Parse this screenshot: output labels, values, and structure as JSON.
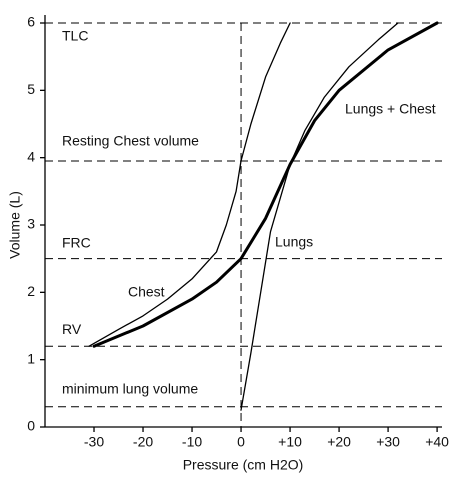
{
  "chart_data": {
    "type": "line",
    "x_label": "Pressure (cm H2O)",
    "y_label": "Volume (L)",
    "xlim": [
      -40,
      41
    ],
    "ylim": [
      0,
      6
    ],
    "xticks": [
      -30,
      -20,
      -10,
      0,
      {
        "value": 10,
        "label": "+10"
      },
      {
        "value": 20,
        "label": "+20"
      },
      {
        "value": 30,
        "label": "+30"
      },
      {
        "value": 40,
        "label": "+40"
      }
    ],
    "yticks": [
      0,
      1,
      2,
      3,
      4,
      5,
      6
    ],
    "reference_lines": [
      {
        "label": "TLC",
        "value": 6
      },
      {
        "label": "Resting Chest volume",
        "value": 3.95
      },
      {
        "label": "FRC",
        "value": 2.5
      },
      {
        "label": "RV",
        "value": 1.2
      },
      {
        "label": "minimum lung volume",
        "value": 0.3
      }
    ],
    "x_reference_lines": [
      0
    ],
    "series": [
      {
        "name": "Chest",
        "color": "#000000",
        "line_width": 1.3,
        "x": [
          -31,
          -25,
          -20,
          -15,
          -10,
          -5,
          -3,
          -1,
          0,
          2,
          5,
          8,
          10
        ],
        "values": [
          1.2,
          1.45,
          1.65,
          1.9,
          2.2,
          2.6,
          3.0,
          3.5,
          3.95,
          4.5,
          5.2,
          5.7,
          6
        ]
      },
      {
        "name": "Lungs",
        "color": "#000000",
        "line_width": 1.3,
        "x": [
          0,
          2,
          4,
          6,
          8,
          10,
          13,
          17,
          22,
          28,
          32
        ],
        "values": [
          0.25,
          1.1,
          2.0,
          2.9,
          3.4,
          3.9,
          4.4,
          4.9,
          5.35,
          5.75,
          6
        ]
      },
      {
        "name": "Lungs + Chest",
        "color": "#000000",
        "line_width": 3,
        "x": [
          -30,
          -20,
          -10,
          -5,
          0,
          5,
          10,
          15,
          20,
          30,
          40
        ],
        "values": [
          1.2,
          1.5,
          1.9,
          2.15,
          2.5,
          3.1,
          3.9,
          4.55,
          5.0,
          5.6,
          6
        ]
      }
    ]
  }
}
